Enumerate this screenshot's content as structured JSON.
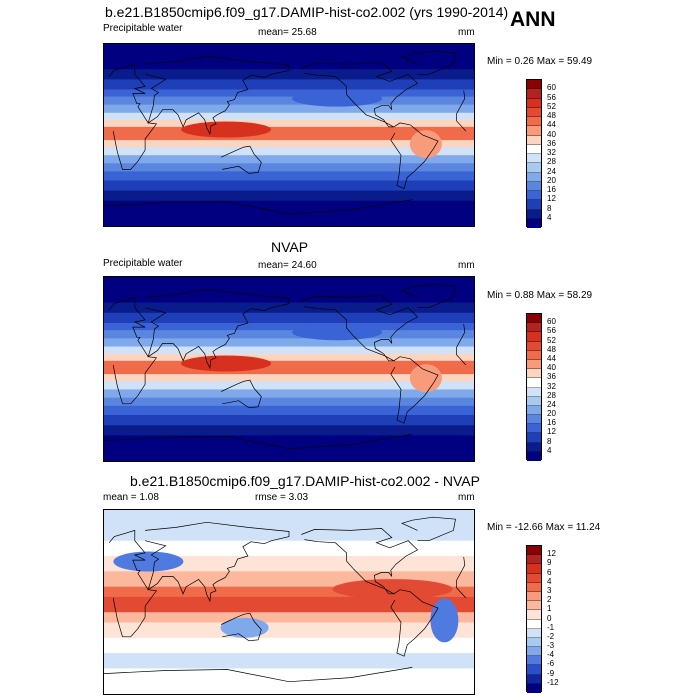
{
  "season": "ANN",
  "chart_data": [
    {
      "type": "heatmap",
      "title": "b.e21.B1850cmip6.f09_g17.DAMIP-hist-co2.002 (yrs 1990-2014)",
      "left_label": "Precipitable water",
      "center_label": "mean=  25.68",
      "units": "mm",
      "min_max": "Min =   0.26 Max =  59.49",
      "levels": [
        "60",
        "56",
        "52",
        "48",
        "44",
        "40",
        "36",
        "32",
        "28",
        "24",
        "20",
        "16",
        "12",
        "8",
        "4"
      ],
      "colors": [
        "#8b0000",
        "#b22222",
        "#d7301f",
        "#e34a33",
        "#f06b4a",
        "#f89b7a",
        "#fcd5c0",
        "#ffffff",
        "#cfe2f7",
        "#a8c9f0",
        "#7fa9ea",
        "#5b86e0",
        "#3a63d6",
        "#1f3fb8",
        "#0a1c8c",
        "#000080"
      ],
      "pattern": "moist"
    },
    {
      "type": "heatmap",
      "title": "NVAP",
      "left_label": "Precipitable water",
      "center_label": "mean=  24.60",
      "units": "mm",
      "min_max": "Min =   0.88 Max =  58.29",
      "levels": [
        "60",
        "56",
        "52",
        "48",
        "44",
        "40",
        "36",
        "32",
        "28",
        "24",
        "20",
        "16",
        "12",
        "8",
        "4"
      ],
      "colors": [
        "#8b0000",
        "#b22222",
        "#d7301f",
        "#e34a33",
        "#f06b4a",
        "#f89b7a",
        "#fcd5c0",
        "#ffffff",
        "#cfe2f7",
        "#a8c9f0",
        "#7fa9ea",
        "#5b86e0",
        "#3a63d6",
        "#1f3fb8",
        "#0a1c8c",
        "#000080"
      ],
      "pattern": "moist"
    },
    {
      "type": "heatmap",
      "title": "b.e21.B1850cmip6.f09_g17.DAMIP-hist-co2.002 - NVAP",
      "left_label": "mean =   1.08",
      "center_label": "rmse =   3.03",
      "units": "mm",
      "min_max": "Min = -12.66 Max =  11.24",
      "levels": [
        "12",
        "9",
        "6",
        "4",
        "3",
        "2",
        "1",
        "0",
        "-1",
        "-2",
        "-3",
        "-4",
        "-6",
        "-9",
        "-12"
      ],
      "colors": [
        "#8b0000",
        "#b22222",
        "#d7301f",
        "#e34a33",
        "#f06b4a",
        "#f89b7a",
        "#fbb89d",
        "#fde4d6",
        "#ffffff",
        "#cfe2f7",
        "#a8c9f0",
        "#7fa9ea",
        "#4f7ae0",
        "#2b4fc8",
        "#10259e",
        "#000080"
      ],
      "pattern": "diff"
    }
  ]
}
